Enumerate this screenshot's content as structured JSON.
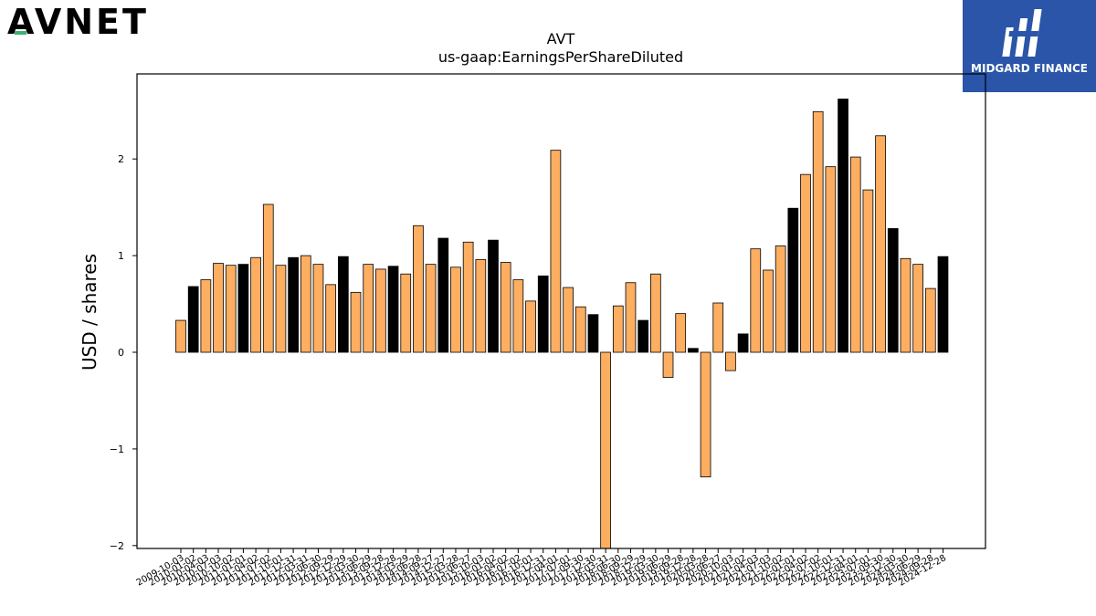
{
  "logos": {
    "left_text": "AVNET",
    "right_text": "MIDGARD FINANCE"
  },
  "colors": {
    "bar_orange": "#FDAE61",
    "bar_black": "#000000",
    "right_logo_bg": "#2A55A8",
    "left_logo_accent": "#3CB371"
  },
  "chart_data": {
    "type": "bar",
    "title": "AVT",
    "subtitle": "us-gaap:EarningsPerShareDiluted",
    "xlabel": "",
    "ylabel": "USD / shares",
    "ylim": [
      -2.03,
      2.88
    ],
    "yticks": [
      -2,
      -1,
      0,
      1,
      2
    ],
    "grid": false,
    "categories": [
      "2009-10-03",
      "2010-01-02",
      "2010-04-03",
      "2010-07-03",
      "2010-10-02",
      "2011-01-01",
      "2011-04-02",
      "2011-07-02",
      "2011-10-01",
      "2011-12-31",
      "2012-03-31",
      "2012-06-30",
      "2012-09-29",
      "2012-12-29",
      "2013-03-30",
      "2013-06-29",
      "2013-09-28",
      "2013-12-28",
      "2014-03-29",
      "2014-06-28",
      "2014-09-27",
      "2014-12-27",
      "2015-03-28",
      "2015-06-27",
      "2015-10-03",
      "2016-01-02",
      "2016-04-02",
      "2016-07-02",
      "2016-10-01",
      "2016-12-31",
      "2017-04-01",
      "2017-07-01",
      "2017-09-30",
      "2017-12-30",
      "2018-03-31",
      "2018-06-30",
      "2018-09-29",
      "2018-12-29",
      "2019-03-30",
      "2019-06-29",
      "2019-09-28",
      "2019-12-28",
      "2020-03-28",
      "2020-06-27",
      "2020-10-03",
      "2021-01-02",
      "2021-04-03",
      "2021-07-03",
      "2021-10-02",
      "2022-01-01",
      "2022-04-02",
      "2022-07-02",
      "2022-10-01",
      "2022-12-31",
      "2023-04-01",
      "2023-07-01",
      "2023-09-30",
      "2023-12-30",
      "2024-03-30",
      "2024-06-29",
      "2024-09-28",
      "2024-12-28"
    ],
    "values": [
      0.33,
      0.68,
      0.75,
      0.92,
      0.9,
      0.91,
      0.98,
      1.53,
      0.9,
      0.98,
      1.0,
      0.91,
      0.7,
      0.99,
      0.62,
      0.91,
      0.86,
      0.89,
      0.81,
      1.31,
      0.91,
      1.18,
      0.88,
      1.14,
      0.96,
      1.16,
      0.93,
      0.75,
      0.53,
      0.79,
      2.09,
      0.67,
      0.47,
      0.39,
      -2.05,
      0.48,
      0.72,
      0.33,
      0.81,
      -0.26,
      0.4,
      0.04,
      -1.29,
      0.51,
      -0.19,
      0.19,
      1.07,
      0.85,
      1.1,
      1.49,
      1.84,
      2.49,
      1.92,
      2.62,
      2.02,
      1.68,
      2.24,
      1.28,
      0.97,
      0.91,
      0.66,
      0.99
    ],
    "annual_flags": [
      0,
      1,
      0,
      0,
      0,
      1,
      0,
      0,
      0,
      1,
      0,
      0,
      0,
      1,
      0,
      0,
      0,
      1,
      0,
      0,
      0,
      1,
      0,
      0,
      0,
      1,
      0,
      0,
      0,
      1,
      0,
      0,
      0,
      1,
      0,
      0,
      0,
      1,
      0,
      0,
      0,
      1,
      0,
      0,
      0,
      1,
      0,
      0,
      0,
      1,
      0,
      0,
      0,
      1,
      0,
      0,
      0,
      1,
      0,
      0,
      0,
      1
    ]
  }
}
